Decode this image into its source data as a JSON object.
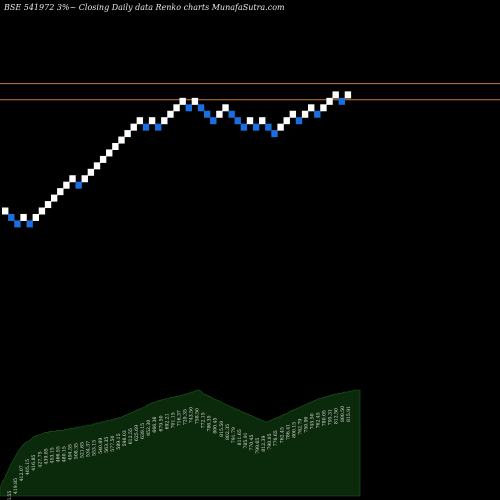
{
  "header": {
    "text": "BSE 541972  3%~  Closing Daily data  Renko  charts MunafaSutra.com"
  },
  "colors": {
    "background": "#000000",
    "up_brick": "#ffffff",
    "down_brick": "#1a6fe0",
    "ref_line": "#c87a3a",
    "volume_fill": "#0b2a0b",
    "volume_stroke": "#1e5a1e",
    "label": "#e0e0e0"
  },
  "chart_data": {
    "type": "renko",
    "title": "BSE 541972  3%~  Closing Daily data  Renko  charts MunafaSutra.com",
    "brick_pct": 3,
    "bricks": [
      {
        "level": 0,
        "dir": "up"
      },
      {
        "level": -1,
        "dir": "down"
      },
      {
        "level": -2,
        "dir": "down"
      },
      {
        "level": -1,
        "dir": "up"
      },
      {
        "level": -2,
        "dir": "down"
      },
      {
        "level": -1,
        "dir": "up"
      },
      {
        "level": 0,
        "dir": "up"
      },
      {
        "level": 1,
        "dir": "up"
      },
      {
        "level": 2,
        "dir": "up"
      },
      {
        "level": 3,
        "dir": "up"
      },
      {
        "level": 4,
        "dir": "up"
      },
      {
        "level": 5,
        "dir": "up"
      },
      {
        "level": 4,
        "dir": "down"
      },
      {
        "level": 5,
        "dir": "up"
      },
      {
        "level": 6,
        "dir": "up"
      },
      {
        "level": 7,
        "dir": "up"
      },
      {
        "level": 8,
        "dir": "up"
      },
      {
        "level": 9,
        "dir": "up"
      },
      {
        "level": 10,
        "dir": "up"
      },
      {
        "level": 11,
        "dir": "up"
      },
      {
        "level": 12,
        "dir": "up"
      },
      {
        "level": 13,
        "dir": "up"
      },
      {
        "level": 14,
        "dir": "up"
      },
      {
        "level": 13,
        "dir": "down"
      },
      {
        "level": 14,
        "dir": "up"
      },
      {
        "level": 13,
        "dir": "down"
      },
      {
        "level": 14,
        "dir": "up"
      },
      {
        "level": 15,
        "dir": "up"
      },
      {
        "level": 16,
        "dir": "up"
      },
      {
        "level": 17,
        "dir": "up"
      },
      {
        "level": 16,
        "dir": "down"
      },
      {
        "level": 17,
        "dir": "up"
      },
      {
        "level": 16,
        "dir": "down"
      },
      {
        "level": 15,
        "dir": "down"
      },
      {
        "level": 14,
        "dir": "down"
      },
      {
        "level": 15,
        "dir": "up"
      },
      {
        "level": 16,
        "dir": "up"
      },
      {
        "level": 15,
        "dir": "down"
      },
      {
        "level": 14,
        "dir": "down"
      },
      {
        "level": 13,
        "dir": "down"
      },
      {
        "level": 14,
        "dir": "up"
      },
      {
        "level": 13,
        "dir": "down"
      },
      {
        "level": 14,
        "dir": "up"
      },
      {
        "level": 13,
        "dir": "down"
      },
      {
        "level": 12,
        "dir": "down"
      },
      {
        "level": 13,
        "dir": "up"
      },
      {
        "level": 14,
        "dir": "up"
      },
      {
        "level": 15,
        "dir": "up"
      },
      {
        "level": 14,
        "dir": "down"
      },
      {
        "level": 15,
        "dir": "up"
      },
      {
        "level": 16,
        "dir": "up"
      },
      {
        "level": 15,
        "dir": "down"
      },
      {
        "level": 16,
        "dir": "up"
      },
      {
        "level": 17,
        "dir": "up"
      },
      {
        "level": 18,
        "dir": "up"
      },
      {
        "level": 17,
        "dir": "down"
      },
      {
        "level": 18,
        "dir": "up"
      }
    ],
    "reference_lines": [
      {
        "level": 19.2
      },
      {
        "level": 16.7
      }
    ],
    "price_labels": [
      "399.95",
      "406.55",
      "419.85",
      "412.07",
      "405.15",
      "416.85",
      "427.75",
      "439.85",
      "453.15",
      "466.55",
      "480.15",
      "494.55",
      "508.35",
      "521.65",
      "534.37",
      "553.15",
      "540.89",
      "563.35",
      "577.50",
      "589.15",
      "598.03",
      "612.55",
      "625.69",
      "639.15",
      "652.30",
      "666.36",
      "679.50",
      "692.21",
      "701.15",
      "716.37",
      "729.35",
      "743.50",
      "758.50",
      "772.15",
      "786.35",
      "800.45",
      "815.50",
      "802.35",
      "791.79",
      "811.65",
      "785.91",
      "770.45",
      "799.65",
      "812.39",
      "790.05",
      "776.65",
      "762.45",
      "786.41",
      "800.15",
      "762.79",
      "750.90",
      "745.50",
      "762.45",
      "780.05",
      "795.31",
      "812.50",
      "800.50",
      "815.91"
    ],
    "volume_profile": [
      8,
      10,
      14,
      15,
      17,
      20,
      22,
      25,
      27,
      30,
      32,
      34,
      36,
      38,
      40,
      42,
      44,
      45,
      47,
      48,
      49,
      50,
      51,
      51,
      52,
      53,
      54,
      55,
      56,
      56,
      57,
      57,
      58,
      58,
      58,
      59,
      59,
      60,
      60,
      60,
      60,
      61,
      61,
      61,
      61,
      61,
      61,
      62,
      62,
      62,
      62,
      62,
      62,
      62,
      63,
      63,
      63,
      63,
      64,
      64,
      64,
      64,
      64,
      65,
      65,
      65,
      65,
      65,
      66,
      66,
      66,
      66,
      67,
      67,
      67,
      67,
      67,
      68,
      68,
      68,
      69,
      69,
      69,
      69,
      70,
      70,
      70,
      70,
      71,
      71,
      71,
      71,
      72,
      72,
      72,
      73,
      73,
      73,
      74,
      74,
      74,
      75,
      75,
      76,
      76,
      77,
      77,
      78,
      78,
      79,
      79,
      80,
      80,
      81,
      81,
      82,
      82,
      83,
      83,
      84,
      84,
      85,
      86,
      86,
      87,
      87,
      88,
      88,
      88,
      89,
      89,
      90,
      90,
      90,
      91,
      91,
      91,
      92,
      92,
      92,
      92,
      93,
      93,
      93,
      93,
      94,
      94,
      94,
      94,
      95,
      95,
      95,
      96,
      96,
      96,
      97,
      97,
      97,
      98,
      98,
      98,
      99,
      99,
      100,
      100,
      100,
      99,
      98,
      97,
      96,
      96,
      95,
      95,
      94,
      94,
      93,
      92,
      92,
      91,
      91,
      90,
      90,
      89,
      89,
      88,
      87,
      87,
      86,
      86,
      85,
      85,
      84,
      84,
      83,
      83,
      82,
      82,
      81,
      81,
      80,
      80,
      79,
      79,
      78,
      78,
      77,
      77,
      76,
      76,
      75,
      75,
      74,
      74,
      73,
      73,
      72,
      72,
      71,
      71,
      70,
      70,
      70,
      70,
      71,
      71,
      72,
      72,
      73,
      73,
      74,
      74,
      75,
      75,
      76,
      76,
      77,
      77,
      78,
      78,
      79,
      80,
      80,
      81,
      81,
      82,
      82,
      83,
      83,
      84,
      84,
      85,
      85,
      86,
      86,
      87,
      87,
      88,
      88,
      89,
      89,
      90,
      90,
      91,
      91,
      92,
      92,
      92,
      93,
      93,
      93,
      94,
      94,
      94,
      95,
      95,
      95,
      96,
      96,
      96,
      96,
      97,
      97,
      97,
      97,
      98,
      98,
      98,
      98,
      98,
      99,
      99,
      99,
      99,
      100,
      100,
      100,
      100,
      100,
      100
    ]
  }
}
